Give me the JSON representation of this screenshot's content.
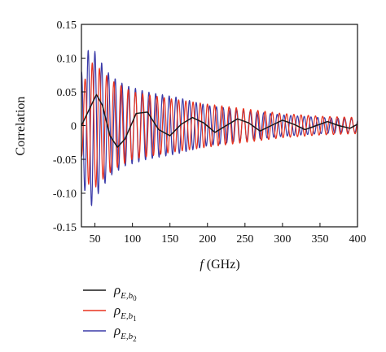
{
  "chart_data": {
    "type": "line",
    "title": "",
    "xlabel_italic": "f",
    "xlabel_rest": " (GHz)",
    "ylabel": "Correlation",
    "xlim": [
      32,
      400
    ],
    "ylim": [
      -0.15,
      0.15
    ],
    "xticks": [
      50,
      100,
      150,
      200,
      250,
      300,
      350,
      400
    ],
    "yticks": [
      -0.15,
      -0.1,
      -0.05,
      0,
      0.05,
      0.1,
      0.15
    ],
    "ytick_labels": [
      "-0.15",
      "-0.10",
      "-0.05",
      "0",
      "0.05",
      "0.10",
      "0.15"
    ],
    "legend_position": "below-left",
    "series": [
      {
        "legend_base": "ρ",
        "legend_sub": "E,b",
        "legend_subsub": "0",
        "color": "#1a1a1a",
        "x": [
          32,
          45,
          52,
          60,
          70,
          80,
          90,
          105,
          120,
          135,
          150,
          165,
          180,
          195,
          210,
          225,
          240,
          255,
          270,
          285,
          300,
          315,
          330,
          345,
          360,
          375,
          390,
          400
        ],
        "y": [
          0.0,
          0.03,
          0.046,
          0.03,
          -0.015,
          -0.032,
          -0.02,
          0.018,
          0.02,
          -0.006,
          -0.015,
          0.002,
          0.012,
          0.004,
          -0.01,
          0.0,
          0.01,
          0.004,
          -0.008,
          0.0,
          0.008,
          0.002,
          -0.006,
          0.0,
          0.006,
          0.0,
          -0.004,
          0.002
        ]
      },
      {
        "legend_base": "ρ",
        "legend_sub": "E,b",
        "legend_subsub": "1",
        "color": "#e8321e",
        "oscillation": {
          "x_start": 32,
          "x_end": 400,
          "period": 9.6,
          "phase": 3.14,
          "amplitude": [
            [
              32,
              0.045
            ],
            [
              40,
              0.085
            ],
            [
              48,
              0.095
            ],
            [
              60,
              0.08
            ],
            [
              75,
              0.065
            ],
            [
              100,
              0.05
            ],
            [
              150,
              0.04
            ],
            [
              200,
              0.032
            ],
            [
              250,
              0.025
            ],
            [
              300,
              0.018
            ],
            [
              350,
              0.014
            ],
            [
              400,
              0.012
            ]
          ]
        }
      },
      {
        "legend_base": "ρ",
        "legend_sub": "E,b",
        "legend_subsub": "2",
        "color": "#3a3aa8",
        "oscillation": {
          "x_start": 32,
          "x_end": 400,
          "period": 9.0,
          "phase": 0.0,
          "amplitude": [
            [
              32,
              0.08
            ],
            [
              40,
              0.11
            ],
            [
              45,
              0.12
            ],
            [
              55,
              0.1
            ],
            [
              70,
              0.075
            ],
            [
              90,
              0.06
            ],
            [
              120,
              0.05
            ],
            [
              160,
              0.042
            ],
            [
              200,
              0.03
            ],
            [
              250,
              0.022
            ],
            [
              300,
              0.016
            ],
            [
              350,
              0.012
            ],
            [
              400,
              0.01
            ]
          ]
        }
      }
    ]
  }
}
